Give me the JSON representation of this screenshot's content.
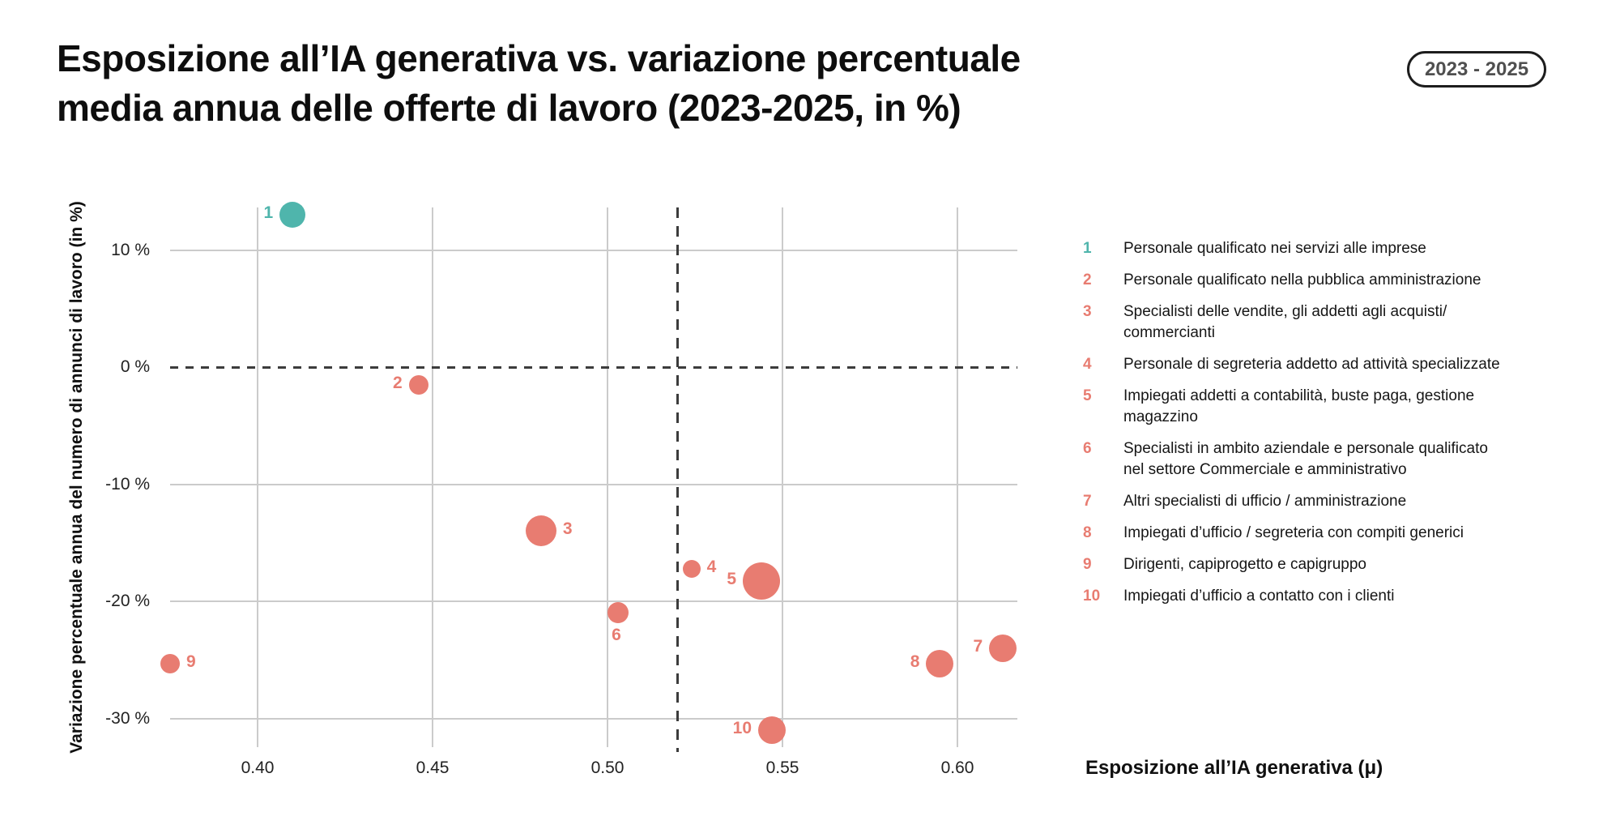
{
  "header": {
    "title_line1": "Esposizione all’IA generativa vs. variazione percentuale",
    "title_line2": "media annua delle offerte di lavoro (2023-2025, in %)",
    "badge": "2023 - 2025"
  },
  "colors": {
    "teal": "#4fb5ac",
    "salmon": "#e87c71",
    "grid": "#cbcbcb",
    "dashed_line": "#3c3c3c",
    "text": "#161616",
    "badge_text": "#4f4f4f"
  },
  "chart_data": {
    "type": "scatter",
    "title": "Esposizione all’IA generativa vs. variazione percentuale media annua delle offerte di lavoro (2023-2025, in %)",
    "xlabel": "Esposizione all’IA generativa (μ)",
    "ylabel": "Variazione percentuale annua del numero di annunci di lavoro (in %)",
    "xlim": [
      0.375,
      0.617
    ],
    "ylim": [
      -33,
      15
    ],
    "grid": true,
    "x_ticks": [
      {
        "value": 0.4,
        "label": "0.40"
      },
      {
        "value": 0.45,
        "label": "0.45"
      },
      {
        "value": 0.5,
        "label": "0.50"
      },
      {
        "value": 0.55,
        "label": "0.55"
      },
      {
        "value": 0.6,
        "label": "0.60"
      }
    ],
    "y_ticks": [
      {
        "value": 10,
        "label": "10 %",
        "dashed": false
      },
      {
        "value": 0,
        "label": "0 %",
        "dashed": true
      },
      {
        "value": -10,
        "label": "-10 %",
        "dashed": false
      },
      {
        "value": -20,
        "label": "-20 %",
        "dashed": false
      },
      {
        "value": -30,
        "label": "-30 %",
        "dashed": false
      }
    ],
    "reference_lines": {
      "horizontal_y": 0,
      "vertical_x": 0.52
    },
    "points": [
      {
        "n": 1,
        "x": 0.41,
        "y": 13.0,
        "r": 16,
        "color": "teal",
        "label_side": "left",
        "name": "Personale qualificato nei servizi alle imprese"
      },
      {
        "n": 2,
        "x": 0.446,
        "y": -1.5,
        "r": 12,
        "color": "salmon",
        "label_side": "left",
        "name": "Personale qualificato nella pubblica amministrazione"
      },
      {
        "n": 3,
        "x": 0.481,
        "y": -14.0,
        "r": 19,
        "color": "salmon",
        "label_side": "right",
        "name": "Specialisti delle vendite, gli addetti agli acquisti/commercianti"
      },
      {
        "n": 4,
        "x": 0.524,
        "y": -17.2,
        "r": 11,
        "color": "salmon",
        "label_side": "right",
        "name": "Personale di segreteria addetto ad attività specializzate"
      },
      {
        "n": 5,
        "x": 0.544,
        "y": -18.3,
        "r": 23,
        "color": "salmon",
        "label_side": "left",
        "name": "Impiegati addetti a contabilità, buste paga, gestione magazzino"
      },
      {
        "n": 6,
        "x": 0.503,
        "y": -21.0,
        "r": 13,
        "color": "salmon",
        "label_side": "below",
        "name": "Specialisti in ambito aziendale e personale qualificato nel settore Commerciale e amministrativo"
      },
      {
        "n": 7,
        "x": 0.613,
        "y": -24.0,
        "r": 17,
        "color": "salmon",
        "label_side": "left",
        "name": "Altri specialisti di ufficio / amministrazione"
      },
      {
        "n": 8,
        "x": 0.595,
        "y": -25.3,
        "r": 17,
        "color": "salmon",
        "label_side": "left",
        "name": "Impiegati d’ufficio / segreteria con compiti generici"
      },
      {
        "n": 9,
        "x": 0.375,
        "y": -25.3,
        "r": 12,
        "color": "salmon",
        "label_side": "right",
        "name": "Dirigenti, capiprogetto e capigruppo"
      },
      {
        "n": 10,
        "x": 0.547,
        "y": -31.0,
        "r": 17,
        "color": "salmon",
        "label_side": "left",
        "name": "Impiegati d’ufficio a contatto con i clienti"
      }
    ]
  },
  "legend": {
    "items": [
      {
        "n": 1,
        "color": "teal",
        "text": "Personale qualificato nei servizi alle imprese"
      },
      {
        "n": 2,
        "color": "salmon",
        "text": "Personale qualificato nella pubblica amministrazione"
      },
      {
        "n": 3,
        "color": "salmon",
        "text": "Specialisti delle vendite, gli addetti agli acquisti/\ncommercianti"
      },
      {
        "n": 4,
        "color": "salmon",
        "text": "Personale di segreteria addetto ad attività specializzate"
      },
      {
        "n": 5,
        "color": "salmon",
        "text": "Impiegati addetti a contabilità, buste paga, gestione\nmagazzino"
      },
      {
        "n": 6,
        "color": "salmon",
        "text": "Specialisti in ambito aziendale e personale qualificato\nnel settore Commerciale e amministrativo"
      },
      {
        "n": 7,
        "color": "salmon",
        "text": "Altri specialisti di ufficio / amministrazione"
      },
      {
        "n": 8,
        "color": "salmon",
        "text": "Impiegati d’ufficio / segreteria con compiti generici"
      },
      {
        "n": 9,
        "color": "salmon",
        "text": "Dirigenti, capiprogetto e capigruppo"
      },
      {
        "n": 10,
        "color": "salmon",
        "text": "Impiegati d’ufficio a contatto con i clienti"
      }
    ]
  }
}
